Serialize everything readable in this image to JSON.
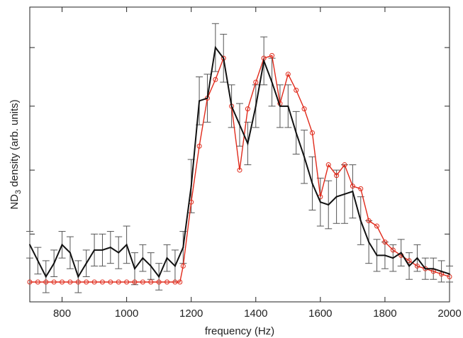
{
  "chart_data": {
    "type": "line",
    "xlabel": "frequency (Hz)",
    "ylabel_main": "ND",
    "ylabel_sub": "3",
    "ylabel_rest": " density (arb. units)",
    "xlim": [
      700,
      2000
    ],
    "ylim": [
      0,
      1
    ],
    "xticks": [
      800,
      1000,
      1200,
      1400,
      1600,
      1800,
      2000
    ],
    "xtick_labels": [
      "800",
      "1000",
      "1200",
      "1400",
      "1600",
      "1800",
      "2000"
    ],
    "yticks": [
      0.18,
      0.42,
      0.66,
      0.88
    ],
    "grid": false,
    "legend": "none",
    "series": [
      {
        "color": "#111111",
        "marker": "none",
        "x": [
          700,
          725,
          750,
          775,
          800,
          825,
          850,
          875,
          900,
          925,
          950,
          975,
          1000,
          1025,
          1050,
          1075,
          1100,
          1125,
          1150,
          1175,
          1200,
          1225,
          1250,
          1275,
          1300,
          1325,
          1350,
          1375,
          1400,
          1425,
          1450,
          1475,
          1500,
          1525,
          1550,
          1575,
          1600,
          1625,
          1650,
          1675,
          1700,
          1725,
          1750,
          1775,
          1800,
          1825,
          1850,
          1875,
          1900,
          1925,
          1950,
          1975,
          2000
        ],
        "y": [
          0.14,
          0.08,
          0.02,
          0.07,
          0.14,
          0.11,
          0.02,
          0.07,
          0.12,
          0.12,
          0.13,
          0.11,
          0.14,
          0.05,
          0.09,
          0.06,
          0.02,
          0.09,
          0.06,
          0.13,
          0.36,
          0.68,
          0.69,
          0.88,
          0.84,
          0.66,
          0.59,
          0.52,
          0.66,
          0.83,
          0.75,
          0.66,
          0.66,
          0.56,
          0.47,
          0.37,
          0.3,
          0.29,
          0.32,
          0.33,
          0.34,
          0.23,
          0.15,
          0.1,
          0.1,
          0.09,
          0.11,
          0.06,
          0.09,
          0.05,
          0.05,
          0.04,
          0.03
        ],
        "err": [
          0.05,
          0.05,
          0.06,
          0.05,
          0.05,
          0.06,
          0.06,
          0.05,
          0.06,
          0.06,
          0.06,
          0.06,
          0.07,
          0.06,
          0.05,
          0.05,
          0.05,
          0.05,
          0.06,
          0.06,
          0.1,
          0.09,
          0.09,
          0.09,
          0.09,
          0.08,
          0.08,
          0.08,
          0.08,
          0.09,
          0.09,
          0.08,
          0.08,
          0.08,
          0.1,
          0.1,
          0.09,
          0.09,
          0.1,
          0.11,
          0.1,
          0.09,
          0.08,
          0.06,
          0.05,
          0.05,
          0.05,
          0.05,
          0.05,
          0.04,
          0.04,
          0.04,
          0.03
        ]
      },
      {
        "color": "#e02a1b",
        "marker": "circle-open",
        "x": [
          700,
          725,
          750,
          775,
          800,
          825,
          850,
          875,
          900,
          925,
          950,
          975,
          1000,
          1025,
          1050,
          1075,
          1100,
          1125,
          1150,
          1165,
          1175,
          1200,
          1225,
          1250,
          1275,
          1300,
          1325,
          1350,
          1375,
          1400,
          1425,
          1450,
          1475,
          1500,
          1525,
          1550,
          1575,
          1600,
          1625,
          1650,
          1675,
          1700,
          1725,
          1750,
          1775,
          1800,
          1825,
          1850,
          1875,
          1900,
          1925,
          1950,
          1975,
          2000
        ],
        "y": [
          0.0,
          0.0,
          0.0,
          0.0,
          0.0,
          0.0,
          0.0,
          0.0,
          0.0,
          0.0,
          0.0,
          0.0,
          0.0,
          0.0,
          0.0,
          0.0,
          0.0,
          0.0,
          0.0,
          0.0,
          0.06,
          0.3,
          0.51,
          0.69,
          0.76,
          0.84,
          0.66,
          0.42,
          0.65,
          0.75,
          0.84,
          0.85,
          0.67,
          0.78,
          0.72,
          0.65,
          0.56,
          0.32,
          0.44,
          0.4,
          0.44,
          0.36,
          0.35,
          0.23,
          0.21,
          0.15,
          0.12,
          0.1,
          0.08,
          0.06,
          0.05,
          0.04,
          0.03,
          0.02
        ]
      }
    ]
  }
}
